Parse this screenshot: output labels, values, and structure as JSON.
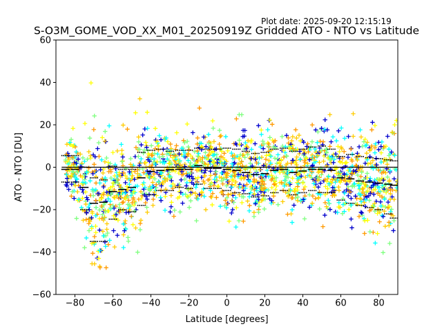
{
  "header": {
    "plot_date": "Plot date: 2025-09-20 12:15:19",
    "title": "S-O3M_GOME_VOD_XX_M01_20250919Z Gridded ATO - NTO vs Latitude"
  },
  "chart_data": {
    "type": "scatter",
    "title": "S-O3M_GOME_VOD_XX_M01_20250919Z Gridded ATO - NTO vs Latitude",
    "xlabel": "Latitude [degrees]",
    "ylabel": "ATO - NTO [DU]",
    "xlim": [
      -90,
      90
    ],
    "ylim": [
      -60,
      60
    ],
    "xticks": [
      -80,
      -60,
      -40,
      -20,
      0,
      20,
      40,
      60,
      80
    ],
    "yticks": [
      -60,
      -40,
      -20,
      0,
      20,
      40,
      60
    ],
    "xtick_labels": [
      "−80",
      "−60",
      "−40",
      "−20",
      "0",
      "20",
      "40",
      "60",
      "80"
    ],
    "ytick_labels": [
      "−60",
      "−40",
      "−20",
      "0",
      "20",
      "40",
      "60"
    ],
    "zero_line": 0,
    "scatter_colors": [
      "#0000cc",
      "#00ffff",
      "#7fff7f",
      "#ffff00",
      "#ffcc00",
      "#ff9900"
    ],
    "bins": [
      {
        "lat": -85,
        "mean": -1.0,
        "upper": 5.5,
        "lower": -7.0
      },
      {
        "lat": -80,
        "mean": -1.0,
        "upper": 5.5,
        "lower": -7.0
      },
      {
        "lat": -75,
        "mean": -9.5,
        "upper": 0.0,
        "lower": -20.0
      },
      {
        "lat": -70,
        "mean": -17.0,
        "upper": -5.0,
        "lower": -35.0
      },
      {
        "lat": -65,
        "mean": -16.5,
        "upper": -6.0,
        "lower": -35.0
      },
      {
        "lat": -60,
        "mean": -11.5,
        "upper": 0.5,
        "lower": -24.5
      },
      {
        "lat": -55,
        "mean": -10.5,
        "upper": -1.0,
        "lower": -20.0
      },
      {
        "lat": -50,
        "mean": -9.5,
        "upper": -1.0,
        "lower": -21.0
      },
      {
        "lat": -45,
        "mean": -5.0,
        "upper": 7.0,
        "lower": -18.0
      },
      {
        "lat": -40,
        "mean": -2.0,
        "upper": 8.0,
        "lower": -13.0
      },
      {
        "lat": -35,
        "mean": -1.5,
        "upper": 8.5,
        "lower": -11.0
      },
      {
        "lat": -30,
        "mean": -1.2,
        "upper": 7.5,
        "lower": -11.0
      },
      {
        "lat": -25,
        "mean": -1.0,
        "upper": 8.0,
        "lower": -9.5
      },
      {
        "lat": -20,
        "mean": -1.0,
        "upper": 8.0,
        "lower": -10.0
      },
      {
        "lat": -15,
        "mean": 0.8,
        "upper": 9.0,
        "lower": -8.0
      },
      {
        "lat": -10,
        "mean": -0.5,
        "upper": 8.5,
        "lower": -10.0
      },
      {
        "lat": -5,
        "mean": -0.5,
        "upper": 8.5,
        "lower": -10.0
      },
      {
        "lat": 0,
        "mean": -1.0,
        "upper": 9.0,
        "lower": -11.0
      },
      {
        "lat": 5,
        "mean": -1.5,
        "upper": 8.5,
        "lower": -12.0
      },
      {
        "lat": 10,
        "mean": -2.5,
        "upper": 7.5,
        "lower": -12.5
      },
      {
        "lat": 15,
        "mean": -3.5,
        "upper": 6.5,
        "lower": -14.0
      },
      {
        "lat": 20,
        "mean": -3.0,
        "upper": 7.0,
        "lower": -13.5
      },
      {
        "lat": 25,
        "mean": -1.5,
        "upper": 8.5,
        "lower": -12.0
      },
      {
        "lat": 30,
        "mean": -1.0,
        "upper": 9.0,
        "lower": -11.0
      },
      {
        "lat": 35,
        "mean": -2.5,
        "upper": 7.5,
        "lower": -13.0
      },
      {
        "lat": 40,
        "mean": -1.8,
        "upper": 8.5,
        "lower": -12.0
      },
      {
        "lat": 45,
        "mean": -1.0,
        "upper": 9.5,
        "lower": -11.0
      },
      {
        "lat": 50,
        "mean": -1.0,
        "upper": 10.0,
        "lower": -12.0
      },
      {
        "lat": 55,
        "mean": -1.5,
        "upper": 8.5,
        "lower": -12.0
      },
      {
        "lat": 60,
        "mean": -5.0,
        "upper": 5.0,
        "lower": -15.5
      },
      {
        "lat": 65,
        "mean": -5.5,
        "upper": 6.0,
        "lower": -17.0
      },
      {
        "lat": 70,
        "mean": -6.5,
        "upper": 5.0,
        "lower": -18.0
      },
      {
        "lat": 75,
        "mean": -7.0,
        "upper": 4.5,
        "lower": -19.0
      },
      {
        "lat": 80,
        "mean": -7.5,
        "upper": 4.0,
        "lower": -20.0
      },
      {
        "lat": 85,
        "mean": -8.0,
        "upper": 3.5,
        "lower": -22.0
      },
      {
        "lat": 88,
        "mean": -8.5,
        "upper": 3.0,
        "lower": -24.0
      }
    ]
  }
}
